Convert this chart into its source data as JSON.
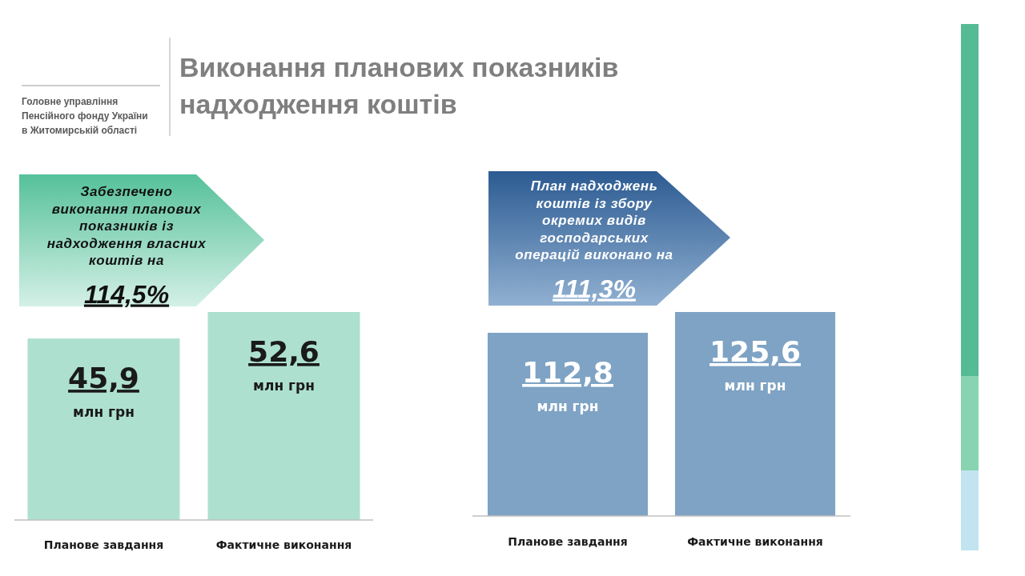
{
  "chart_data": [
    {
      "type": "bar",
      "title": "Виконання планових показників надходження коштів",
      "subtitle": "Головне управління Пенсійного фонду України в Житомирській області",
      "annotations": [
        "Забезпечено виконання планових показників із надходження власних коштів на",
        "114,5%"
      ],
      "categories": [
        "Планове завдання",
        "Фактичне виконання"
      ],
      "values": [
        45.9,
        52.6
      ],
      "value_labels": [
        "45,9\nмлн грн",
        "52,6\nмлн грн"
      ],
      "color": "#aee0cf"
    },
    {
      "type": "bar",
      "annotations": [
        "План надходжень коштів із збору окремих видів господарських операцій виконано на",
        "111,3%"
      ],
      "categories": [
        "Планове завдання",
        "Фактичне виконання"
      ],
      "values": [
        112.8,
        125.6
      ],
      "value_labels": [
        "112,8\nмлн грн",
        "125,6\nмлн грн"
      ],
      "color": "#7ea3c4"
    }
  ]
}
